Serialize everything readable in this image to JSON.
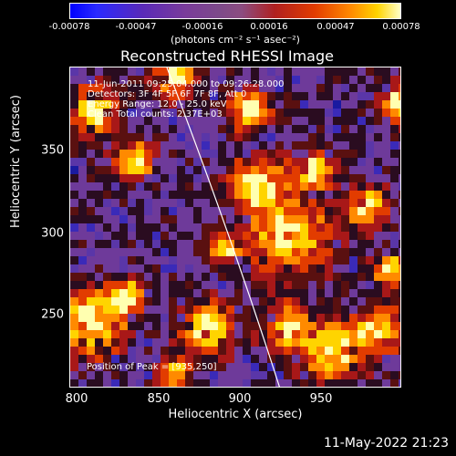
{
  "colorbar": {
    "ticks": [
      "-0.00078",
      "-0.00047",
      "-0.00016",
      "0.00016",
      "0.00047",
      "0.00078"
    ],
    "unit": "(photons cm⁻² s⁻¹ asec⁻²)"
  },
  "title": "Reconstructed RHESSI Image",
  "info": {
    "line1": "11-Jun-2011 09:25:04.000 to 09:26:28.000",
    "line2": "Detectors: 3F 4F 5F 6F 7F 8F, Att 0",
    "line3": "Energy Range: 12.0 - 25.0 keV",
    "line4": "Clean     Total counts: 2.37E+03"
  },
  "peak_label": "Position of Peak = [935,250]",
  "axes": {
    "xlabel": "Heliocentric X (arcsec)",
    "ylabel": "Heliocentric Y (arcsec)",
    "xticks": [
      "800",
      "850",
      "900",
      "950"
    ],
    "yticks": [
      "350",
      "300",
      "250"
    ],
    "xlim": [
      797,
      987
    ],
    "ylim": [
      205,
      388
    ]
  },
  "timestamp": "11-May-2022 21:23",
  "colors": {
    "background": "#000000",
    "limb_line": "#ffffff"
  }
}
